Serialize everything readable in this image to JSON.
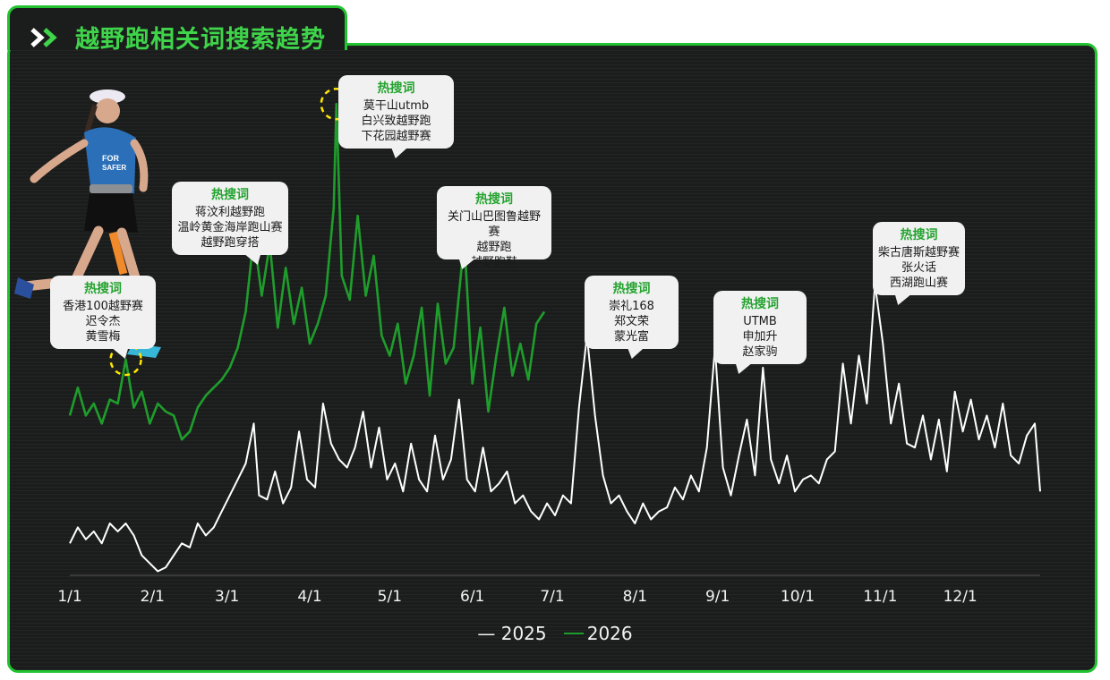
{
  "title": "越野跑相关词搜索趋势",
  "callout_heading": "热搜词",
  "callouts": [
    {
      "lines": [
        "香港100越野赛",
        "迟令杰",
        "黄雪梅"
      ]
    },
    {
      "lines": [
        "蒋汶利越野跑",
        "温岭黄金海岸跑山赛",
        "越野跑穿搭"
      ]
    },
    {
      "lines": [
        "莫干山utmb",
        "白兴致越野跑",
        "下花园越野赛"
      ]
    },
    {
      "lines": [
        "关门山巴图鲁越野赛",
        "越野跑",
        "越野跑鞋"
      ]
    },
    {
      "lines": [
        "崇礼168",
        "郑文荣",
        "蒙光富"
      ]
    },
    {
      "lines": [
        "UTMB",
        "申加升",
        "赵家驹"
      ]
    },
    {
      "lines": [
        "柴古唐斯越野赛",
        "张火话",
        "西湖跑山赛"
      ]
    }
  ],
  "colors": {
    "accent": "#22c331",
    "series_2025": "#ffffff",
    "series_2026": "#1f9d2c",
    "highlight": "#ffe600"
  },
  "chart_data": {
    "type": "line",
    "x_ticks": [
      "1/1",
      "2/1",
      "3/1",
      "4/1",
      "5/1",
      "6/1",
      "7/1",
      "8/1",
      "9/1",
      "10/1",
      "11/1",
      "12/1"
    ],
    "y_axis": "hidden (relative index, 0-100)",
    "ylim": [
      0,
      100
    ],
    "grid": false,
    "legend_position": "bottom-center",
    "highlights": [
      {
        "series": "2026",
        "date": "1/22"
      },
      {
        "series": "2026",
        "date": "3/16"
      },
      {
        "series": "2026",
        "date": "4/11"
      },
      {
        "series": "2026",
        "date": "5/29"
      },
      {
        "series": "2025",
        "date": "7/15"
      },
      {
        "series": "2025",
        "date": "8/30"
      },
      {
        "series": "2025",
        "date": "10/31"
      }
    ],
    "series": [
      {
        "name": "2025",
        "points": [
          [
            "1/1",
            8
          ],
          [
            "1/4",
            12
          ],
          [
            "1/7",
            9
          ],
          [
            "1/10",
            11
          ],
          [
            "1/13",
            8
          ],
          [
            "1/16",
            13
          ],
          [
            "1/19",
            11
          ],
          [
            "1/22",
            13
          ],
          [
            "1/25",
            10
          ],
          [
            "1/28",
            5
          ],
          [
            "1/31",
            3
          ],
          [
            "2/3",
            1
          ],
          [
            "2/6",
            2
          ],
          [
            "2/9",
            5
          ],
          [
            "2/12",
            8
          ],
          [
            "2/15",
            7
          ],
          [
            "2/18",
            13
          ],
          [
            "2/21",
            10
          ],
          [
            "2/24",
            12
          ],
          [
            "2/27",
            16
          ],
          [
            "3/2",
            20
          ],
          [
            "3/5",
            24
          ],
          [
            "3/8",
            28
          ],
          [
            "3/11",
            38
          ],
          [
            "3/13",
            20
          ],
          [
            "3/16",
            19
          ],
          [
            "3/19",
            26
          ],
          [
            "3/22",
            18
          ],
          [
            "3/25",
            22
          ],
          [
            "3/28",
            36
          ],
          [
            "3/31",
            24
          ],
          [
            "4/3",
            22
          ],
          [
            "4/6",
            43
          ],
          [
            "4/9",
            33
          ],
          [
            "4/12",
            29
          ],
          [
            "4/15",
            27
          ],
          [
            "4/18",
            32
          ],
          [
            "4/21",
            41
          ],
          [
            "4/24",
            27
          ],
          [
            "4/27",
            37
          ],
          [
            "4/30",
            24
          ],
          [
            "5/3",
            28
          ],
          [
            "5/6",
            21
          ],
          [
            "5/9",
            33
          ],
          [
            "5/12",
            24
          ],
          [
            "5/15",
            21
          ],
          [
            "5/18",
            35
          ],
          [
            "5/21",
            24
          ],
          [
            "5/24",
            29
          ],
          [
            "5/27",
            44
          ],
          [
            "5/30",
            24
          ],
          [
            "6/2",
            21
          ],
          [
            "6/5",
            32
          ],
          [
            "6/8",
            21
          ],
          [
            "6/11",
            23
          ],
          [
            "6/14",
            26
          ],
          [
            "6/17",
            18
          ],
          [
            "6/20",
            20
          ],
          [
            "6/23",
            16
          ],
          [
            "6/26",
            14
          ],
          [
            "6/29",
            18
          ],
          [
            "7/2",
            15
          ],
          [
            "7/5",
            20
          ],
          [
            "7/8",
            18
          ],
          [
            "7/11",
            42
          ],
          [
            "7/14",
            60
          ],
          [
            "7/17",
            40
          ],
          [
            "7/20",
            25
          ],
          [
            "7/23",
            18
          ],
          [
            "7/26",
            20
          ],
          [
            "7/29",
            16
          ],
          [
            "8/1",
            13
          ],
          [
            "8/4",
            18
          ],
          [
            "8/7",
            14
          ],
          [
            "8/10",
            16
          ],
          [
            "8/13",
            17
          ],
          [
            "8/16",
            22
          ],
          [
            "8/19",
            19
          ],
          [
            "8/22",
            25
          ],
          [
            "8/25",
            21
          ],
          [
            "8/28",
            32
          ],
          [
            "8/31",
            57
          ],
          [
            "9/3",
            27
          ],
          [
            "9/6",
            20
          ],
          [
            "9/9",
            30
          ],
          [
            "9/12",
            39
          ],
          [
            "9/15",
            25
          ],
          [
            "9/18",
            52
          ],
          [
            "9/21",
            29
          ],
          [
            "9/24",
            23
          ],
          [
            "9/27",
            30
          ],
          [
            "9/30",
            21
          ],
          [
            "10/3",
            24
          ],
          [
            "10/6",
            25
          ],
          [
            "10/9",
            23
          ],
          [
            "10/12",
            29
          ],
          [
            "10/15",
            31
          ],
          [
            "10/18",
            53
          ],
          [
            "10/21",
            38
          ],
          [
            "10/24",
            55
          ],
          [
            "10/27",
            43
          ],
          [
            "10/30",
            73
          ],
          [
            "11/2",
            58
          ],
          [
            "11/5",
            38
          ],
          [
            "11/8",
            48
          ],
          [
            "11/11",
            33
          ],
          [
            "11/14",
            32
          ],
          [
            "11/17",
            40
          ],
          [
            "11/20",
            29
          ],
          [
            "11/23",
            39
          ],
          [
            "11/26",
            26
          ],
          [
            "11/29",
            46
          ],
          [
            "12/2",
            36
          ],
          [
            "12/5",
            44
          ],
          [
            "12/8",
            34
          ],
          [
            "12/11",
            40
          ],
          [
            "12/14",
            32
          ],
          [
            "12/17",
            43
          ],
          [
            "12/20",
            30
          ],
          [
            "12/23",
            28
          ],
          [
            "12/26",
            35
          ],
          [
            "12/29",
            38
          ],
          [
            "12/31",
            21
          ]
        ]
      },
      {
        "name": "2026",
        "points": [
          [
            "1/1",
            40
          ],
          [
            "1/4",
            47
          ],
          [
            "1/7",
            40
          ],
          [
            "1/10",
            43
          ],
          [
            "1/13",
            38
          ],
          [
            "1/16",
            44
          ],
          [
            "1/19",
            43
          ],
          [
            "1/22",
            54
          ],
          [
            "1/25",
            42
          ],
          [
            "1/28",
            46
          ],
          [
            "1/31",
            38
          ],
          [
            "2/3",
            43
          ],
          [
            "2/6",
            41
          ],
          [
            "2/9",
            40
          ],
          [
            "2/12",
            34
          ],
          [
            "2/15",
            36
          ],
          [
            "2/18",
            42
          ],
          [
            "2/21",
            45
          ],
          [
            "2/24",
            47
          ],
          [
            "2/27",
            49
          ],
          [
            "3/2",
            52
          ],
          [
            "3/5",
            57
          ],
          [
            "3/8",
            66
          ],
          [
            "3/11",
            85
          ],
          [
            "3/14",
            70
          ],
          [
            "3/17",
            83
          ],
          [
            "3/20",
            62
          ],
          [
            "3/23",
            77
          ],
          [
            "3/26",
            63
          ],
          [
            "3/29",
            72
          ],
          [
            "4/1",
            58
          ],
          [
            "4/4",
            63
          ],
          [
            "4/7",
            70
          ],
          [
            "4/10",
            92
          ],
          [
            "4/11",
            118
          ],
          [
            "4/13",
            75
          ],
          [
            "4/16",
            69
          ],
          [
            "4/19",
            90
          ],
          [
            "4/22",
            70
          ],
          [
            "4/25",
            80
          ],
          [
            "4/28",
            60
          ],
          [
            "5/1",
            55
          ],
          [
            "5/4",
            63
          ],
          [
            "5/7",
            48
          ],
          [
            "5/10",
            55
          ],
          [
            "5/13",
            67
          ],
          [
            "5/16",
            45
          ],
          [
            "5/19",
            68
          ],
          [
            "5/22",
            53
          ],
          [
            "5/25",
            57
          ],
          [
            "5/29",
            84
          ],
          [
            "6/1",
            48
          ],
          [
            "6/4",
            62
          ],
          [
            "6/7",
            41
          ],
          [
            "6/10",
            55
          ],
          [
            "6/13",
            67
          ],
          [
            "6/16",
            50
          ],
          [
            "6/19",
            58
          ],
          [
            "6/22",
            49
          ],
          [
            "6/25",
            63
          ],
          [
            "6/28",
            66
          ]
        ]
      }
    ]
  },
  "legend": [
    "— 2025",
    "— 2026"
  ]
}
